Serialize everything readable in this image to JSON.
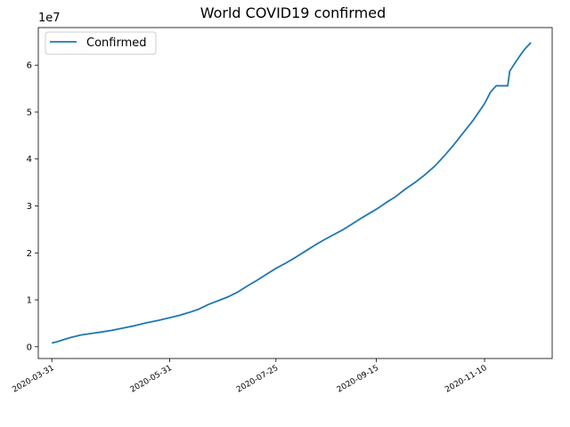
{
  "chart_data": {
    "type": "line",
    "title": "World COVID19 confirmed",
    "xlabel": "",
    "ylabel": "",
    "y_offset_label": "1e7",
    "y_scale_factor": 10000000,
    "ylim": [
      -2500000,
      68000000
    ],
    "xlim": [
      "2020-03-24",
      "2020-12-15"
    ],
    "x_ticks": [
      "2020-03-31",
      "2020-05-31",
      "2020-07-25",
      "2020-09-15",
      "2020-11-10"
    ],
    "y_ticks": [
      0,
      10000000,
      20000000,
      30000000,
      40000000,
      50000000,
      60000000
    ],
    "y_tick_labels": [
      "0",
      "1",
      "2",
      "3",
      "4",
      "5",
      "6"
    ],
    "grid": false,
    "legend_position": "upper-left",
    "colors": {
      "line": "#1f77b4",
      "axis": "#000000",
      "legend_border": "#cccccc"
    },
    "series": [
      {
        "name": "Confirmed",
        "x": [
          "2020-03-31",
          "2020-04-03",
          "2020-04-06",
          "2020-04-10",
          "2020-04-15",
          "2020-04-20",
          "2020-04-25",
          "2020-05-01",
          "2020-05-07",
          "2020-05-13",
          "2020-05-19",
          "2020-05-25",
          "2020-05-31",
          "2020-06-05",
          "2020-06-10",
          "2020-06-15",
          "2020-06-20",
          "2020-06-25",
          "2020-06-30",
          "2020-07-05",
          "2020-07-10",
          "2020-07-15",
          "2020-07-20",
          "2020-07-25",
          "2020-07-30",
          "2020-08-04",
          "2020-08-09",
          "2020-08-14",
          "2020-08-19",
          "2020-08-24",
          "2020-08-29",
          "2020-09-03",
          "2020-09-08",
          "2020-09-15",
          "2020-09-20",
          "2020-09-25",
          "2020-09-30",
          "2020-10-05",
          "2020-10-10",
          "2020-10-15",
          "2020-10-20",
          "2020-10-25",
          "2020-10-30",
          "2020-11-04",
          "2020-11-10",
          "2020-11-13",
          "2020-11-16",
          "2020-11-19",
          "2020-11-22",
          "2020-11-23",
          "2020-11-26",
          "2020-11-29",
          "2020-12-01",
          "2020-12-04"
        ],
        "y": [
          800000,
          1100000,
          1500000,
          2000000,
          2500000,
          2800000,
          3100000,
          3500000,
          4000000,
          4500000,
          5100000,
          5600000,
          6200000,
          6700000,
          7300000,
          8000000,
          9000000,
          9800000,
          10600000,
          11600000,
          12900000,
          14100000,
          15400000,
          16700000,
          17800000,
          19000000,
          20300000,
          21600000,
          22800000,
          23900000,
          25000000,
          26300000,
          27600000,
          29300000,
          30700000,
          32000000,
          33600000,
          35000000,
          36600000,
          38400000,
          40600000,
          43000000,
          45600000,
          48200000,
          51800000,
          54200000,
          55600000,
          55600000,
          55600000,
          58700000,
          60600000,
          62400000,
          63500000,
          64800000
        ]
      }
    ]
  }
}
